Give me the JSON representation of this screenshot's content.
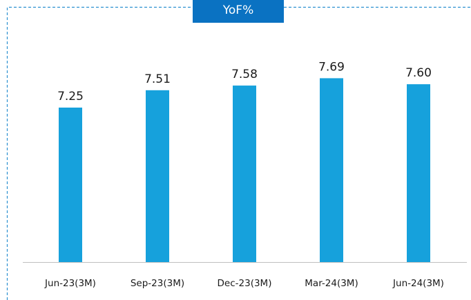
{
  "title": "YoF%",
  "colors": {
    "bar": "#16a1dc",
    "title_bg": "#0a72c2",
    "border": "#2a8fd0",
    "axis": "#bfbfbf"
  },
  "chart_data": {
    "type": "bar",
    "title": "YoF%",
    "categories": [
      "Jun-23(3M)",
      "Sep-23(3M)",
      "Dec-23(3M)",
      "Mar-24(3M)",
      "Jun-24(3M)"
    ],
    "values": [
      7.25,
      7.51,
      7.58,
      7.69,
      7.6
    ],
    "value_labels": [
      "7.25",
      "7.51",
      "7.58",
      "7.69",
      "7.60"
    ],
    "xlabel": "",
    "ylabel": "",
    "grid": false,
    "legend": "none"
  }
}
